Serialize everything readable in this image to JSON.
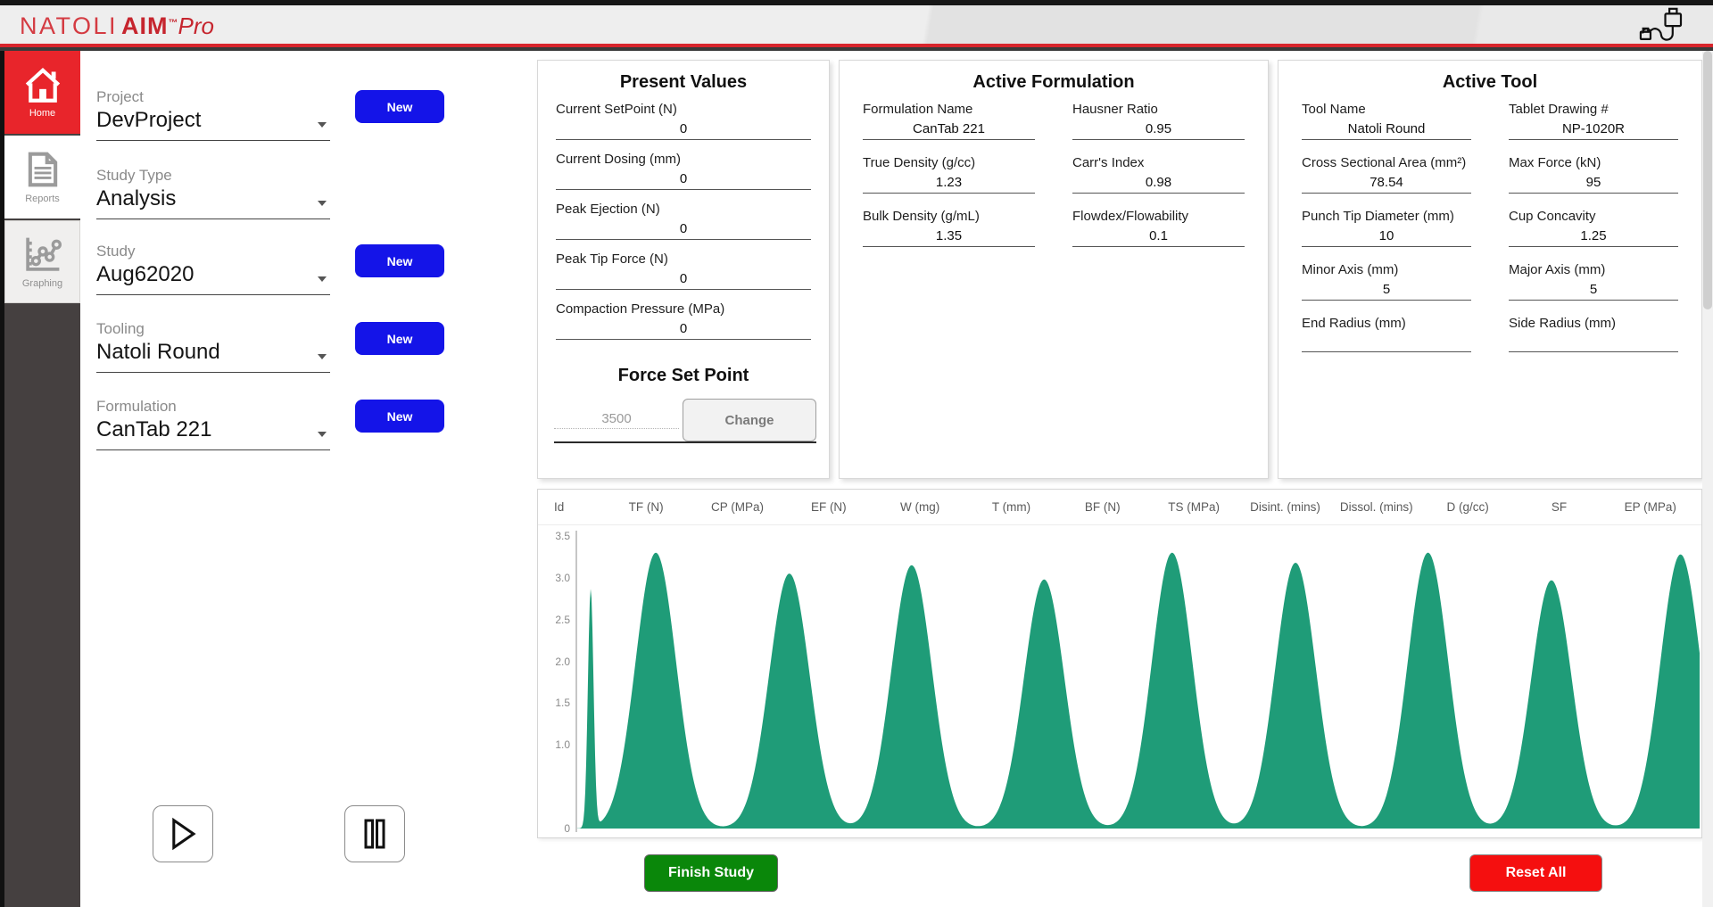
{
  "brand": {
    "natoli": "NATOLI",
    "aim": "AIM",
    "tm": "™",
    "pro": "Pro"
  },
  "header": {
    "usb_icon": "usb-cable-icon"
  },
  "sidebar": {
    "items": [
      {
        "label": "Home",
        "icon": "home-icon",
        "active": true
      },
      {
        "label": "Reports",
        "icon": "reports-document-icon",
        "active": false
      },
      {
        "label": "Graphing",
        "icon": "graphing-chart-icon",
        "active": false
      }
    ]
  },
  "form": {
    "new_button_label": "New",
    "fields": [
      {
        "label": "Project",
        "value": "DevProject",
        "has_new": true
      },
      {
        "label": "Study Type",
        "value": "Analysis",
        "has_new": false
      },
      {
        "label": "Study",
        "value": "Aug62020",
        "has_new": true
      },
      {
        "label": "Tooling",
        "value": "Natoli Round",
        "has_new": true
      },
      {
        "label": "Formulation",
        "value": "CanTab 221",
        "has_new": true
      }
    ]
  },
  "present_values": {
    "title": "Present Values",
    "fields": [
      {
        "label": "Current SetPoint (N)",
        "value": "0"
      },
      {
        "label": "Current Dosing (mm)",
        "value": "0"
      },
      {
        "label": "Peak Ejection (N)",
        "value": "0"
      },
      {
        "label": "Peak Tip Force (N)",
        "value": "0"
      },
      {
        "label": "Compaction Pressure (MPa)",
        "value": "0"
      }
    ],
    "force_set_point": {
      "title": "Force Set Point",
      "input_value": "3500",
      "change_label": "Change"
    }
  },
  "active_formulation": {
    "title": "Active Formulation",
    "fields": [
      {
        "label": "Formulation Name",
        "value": "CanTab 221"
      },
      {
        "label": "Hausner Ratio",
        "value": "0.95"
      },
      {
        "label": "True Density (g/cc)",
        "value": "1.23"
      },
      {
        "label": "Carr's Index",
        "value": "0.98"
      },
      {
        "label": "Bulk Density (g/mL)",
        "value": "1.35"
      },
      {
        "label": "Flowdex/Flowability",
        "value": "0.1"
      }
    ]
  },
  "active_tool": {
    "title": "Active Tool",
    "fields": [
      {
        "label": "Tool Name",
        "value": "Natoli Round"
      },
      {
        "label": "Tablet Drawing #",
        "value": "NP-1020R"
      },
      {
        "label": "Cross Sectional Area (mm²)",
        "value": "78.54"
      },
      {
        "label": "Max Force (kN)",
        "value": "95"
      },
      {
        "label": "Punch Tip Diameter (mm)",
        "value": "10"
      },
      {
        "label": "Cup Concavity",
        "value": "1.25"
      },
      {
        "label": "Minor Axis (mm)",
        "value": "5"
      },
      {
        "label": "Major Axis (mm)",
        "value": "5"
      },
      {
        "label": "End Radius (mm)",
        "value": ""
      },
      {
        "label": "Side Radius (mm)",
        "value": ""
      }
    ]
  },
  "table": {
    "columns": [
      "Id",
      "TF (N)",
      "CP (MPa)",
      "EF (N)",
      "W (mg)",
      "T (mm)",
      "BF (N)",
      "TS (MPa)",
      "Disint. (mins)",
      "Dissol. (mins)",
      "D (g/cc)",
      "SF",
      "EP (MPa)"
    ]
  },
  "chart_data": {
    "type": "area",
    "title": "",
    "xlabel": "",
    "ylabel": "",
    "ylim": [
      0,
      3.5
    ],
    "grid": false,
    "legend": "none",
    "fill_color": "#1f9c78",
    "ytick_values": [
      3.5,
      3.0,
      2.5,
      2.0,
      1.5,
      1.0,
      0
    ],
    "ytick_labels": [
      "3.5",
      "3.0",
      "2.5",
      "2.0",
      "1.5",
      "1.0",
      "0"
    ],
    "peaks": [
      {
        "x_frac": 0.012,
        "height": 2.85,
        "sigma_frac": 0.0025
      },
      {
        "x_frac": 0.07,
        "height": 3.3,
        "sigma_frac": 0.018
      },
      {
        "x_frac": 0.189,
        "height": 3.05,
        "sigma_frac": 0.018
      },
      {
        "x_frac": 0.298,
        "height": 3.15,
        "sigma_frac": 0.018
      },
      {
        "x_frac": 0.416,
        "height": 2.98,
        "sigma_frac": 0.018
      },
      {
        "x_frac": 0.53,
        "height": 3.3,
        "sigma_frac": 0.018
      },
      {
        "x_frac": 0.64,
        "height": 3.18,
        "sigma_frac": 0.018
      },
      {
        "x_frac": 0.758,
        "height": 3.3,
        "sigma_frac": 0.018
      },
      {
        "x_frac": 0.868,
        "height": 2.97,
        "sigma_frac": 0.018
      },
      {
        "x_frac": 0.983,
        "height": 3.28,
        "sigma_frac": 0.018
      }
    ]
  },
  "actions": {
    "finish_label": "Finish Study",
    "finish_color": "#0a870a",
    "reset_label": "Reset All",
    "reset_color": "#f50f0f"
  },
  "transport": {
    "play_icon": "play-icon",
    "pause_icon": "pause-icon"
  }
}
